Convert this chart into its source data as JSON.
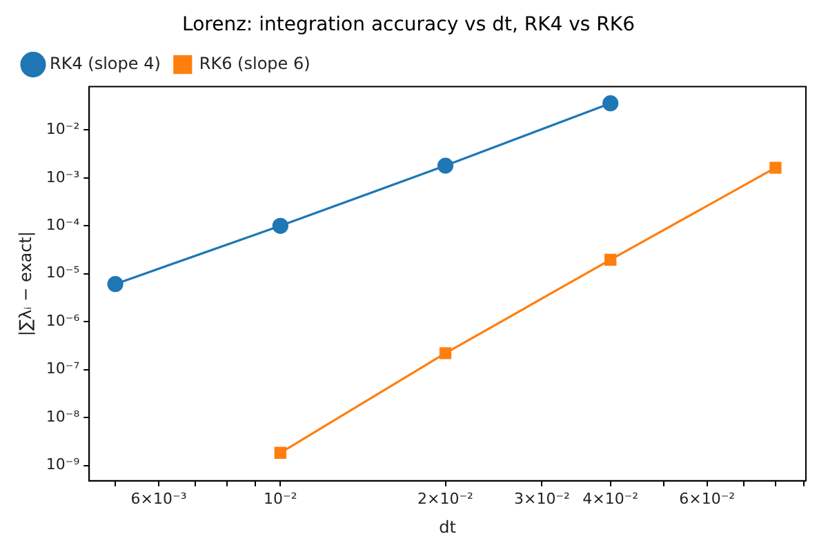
{
  "chart_data": {
    "type": "line",
    "title": "Lorenz: integration accuracy vs dt, RK4 vs RK6",
    "xlabel": "dt",
    "ylabel": "|∑λᵢ − exact|",
    "log": "xy",
    "grid": false,
    "legend": "top left",
    "xlim": [
      0.00448,
      0.0909
    ],
    "ylim": [
      4.8e-10,
      0.08
    ],
    "xticks": [
      {
        "value": 0.005,
        "label": null
      },
      {
        "value": 0.006,
        "label": "6×10⁻³"
      },
      {
        "value": 0.007,
        "label": null
      },
      {
        "value": 0.008,
        "label": null
      },
      {
        "value": 0.009,
        "label": null
      },
      {
        "value": 0.01,
        "label": "10⁻²"
      },
      {
        "value": 0.02,
        "label": "2×10⁻²"
      },
      {
        "value": 0.03,
        "label": "3×10⁻²"
      },
      {
        "value": 0.04,
        "label": "4×10⁻²"
      },
      {
        "value": 0.05,
        "label": null
      },
      {
        "value": 0.06,
        "label": "6×10⁻²"
      },
      {
        "value": 0.07,
        "label": null
      },
      {
        "value": 0.08,
        "label": null
      },
      {
        "value": 0.09,
        "label": null
      }
    ],
    "yticks": [
      {
        "value": 1e-09,
        "label": "10⁻⁹"
      },
      {
        "value": 1e-08,
        "label": "10⁻⁸"
      },
      {
        "value": 1e-07,
        "label": "10⁻⁷"
      },
      {
        "value": 1e-06,
        "label": "10⁻⁶"
      },
      {
        "value": 1e-05,
        "label": "10⁻⁵"
      },
      {
        "value": 0.0001,
        "label": "10⁻⁴"
      },
      {
        "value": 0.001,
        "label": "10⁻³"
      },
      {
        "value": 0.01,
        "label": "10⁻²"
      }
    ],
    "series": [
      {
        "name": "RK4 (slope 4)",
        "color": "#1f77b4",
        "marker": "circle",
        "x": [
          0.005,
          0.01,
          0.02,
          0.04
        ],
        "values": [
          6.1e-06,
          0.0001,
          0.0018,
          0.036
        ]
      },
      {
        "name": "RK6 (slope 6)",
        "color": "#ff7f0e",
        "marker": "square",
        "x": [
          0.01,
          0.02,
          0.04,
          0.08
        ],
        "values": [
          1.84e-09,
          2.2e-07,
          1.96e-05,
          0.00163
        ]
      }
    ]
  }
}
